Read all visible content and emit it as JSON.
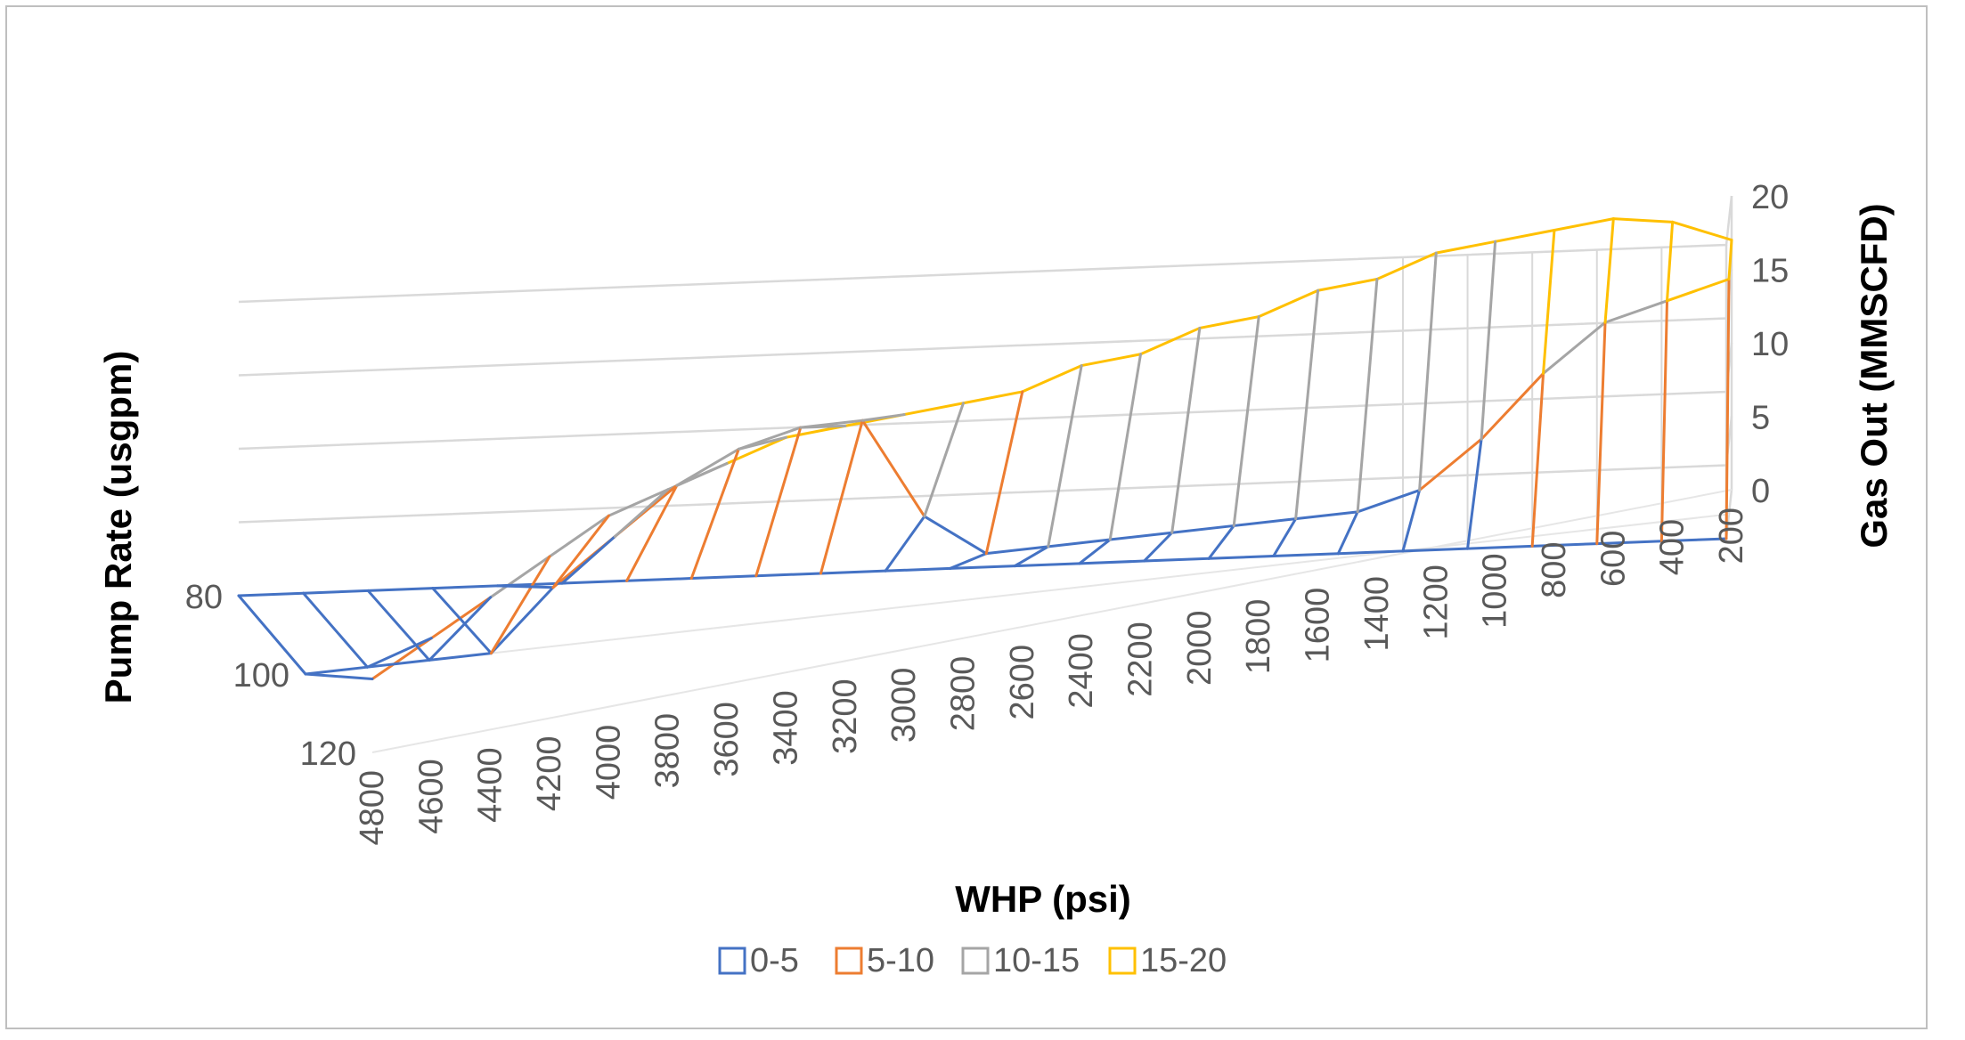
{
  "chart_data": {
    "type": "surface",
    "title": "",
    "xlabel": "WHP (psi)",
    "ylabel": "Pump Rate (usgpm)",
    "zlabel": "Gas Out (MMSCFD)",
    "x": [
      4800,
      4600,
      4400,
      4200,
      4000,
      3800,
      3600,
      3400,
      3200,
      3000,
      2800,
      2600,
      2400,
      2200,
      2000,
      1800,
      1600,
      1400,
      1200,
      1000,
      800,
      600,
      400,
      200
    ],
    "y": [
      80,
      100,
      120
    ],
    "zlim": [
      0,
      20
    ],
    "z_ticks": [
      0,
      5,
      10,
      15,
      20
    ],
    "x_tick_labels": [
      "4800",
      "4600",
      "4400",
      "4200",
      "4000",
      "3800",
      "3600",
      "3400",
      "3200",
      "3000",
      "2800",
      "2600",
      "2400",
      "2200",
      "2000",
      "1800",
      "1600",
      "1400",
      "1200",
      "1000",
      "800",
      "600",
      "400",
      "200"
    ],
    "y_tick_labels": [
      "80",
      "100",
      "120"
    ],
    "z_tick_labels": [
      "0",
      "5",
      "10",
      "15",
      "20"
    ],
    "series": [
      {
        "name": "0-5",
        "range": [
          0,
          5
        ],
        "color": "#4472C4"
      },
      {
        "name": "5-10",
        "range": [
          5,
          10
        ],
        "color": "#ED7D31"
      },
      {
        "name": "10-15",
        "range": [
          10,
          15
        ],
        "color": "#A5A5A5"
      },
      {
        "name": "15-20",
        "range": [
          15,
          20
        ],
        "color": "#FFC000"
      }
    ],
    "values": [
      [
        0,
        0,
        0,
        0,
        0,
        0,
        0,
        0,
        0,
        0,
        0,
        0,
        0,
        0,
        0,
        0,
        0,
        0,
        0,
        0,
        0,
        0,
        0,
        0
      ],
      [
        0,
        0,
        0,
        0,
        4,
        7,
        10,
        12,
        13,
        13,
        6,
        3,
        3,
        3,
        3,
        3,
        3,
        3,
        4,
        7,
        11,
        14,
        15,
        16
      ],
      [
        5,
        7,
        9,
        11,
        13,
        14,
        15,
        16,
        16,
        16,
        16,
        16,
        17,
        17,
        18,
        18,
        19,
        19,
        20,
        20,
        20,
        20,
        19,
        17
      ]
    ],
    "legend_position": "bottom",
    "grid": true
  }
}
